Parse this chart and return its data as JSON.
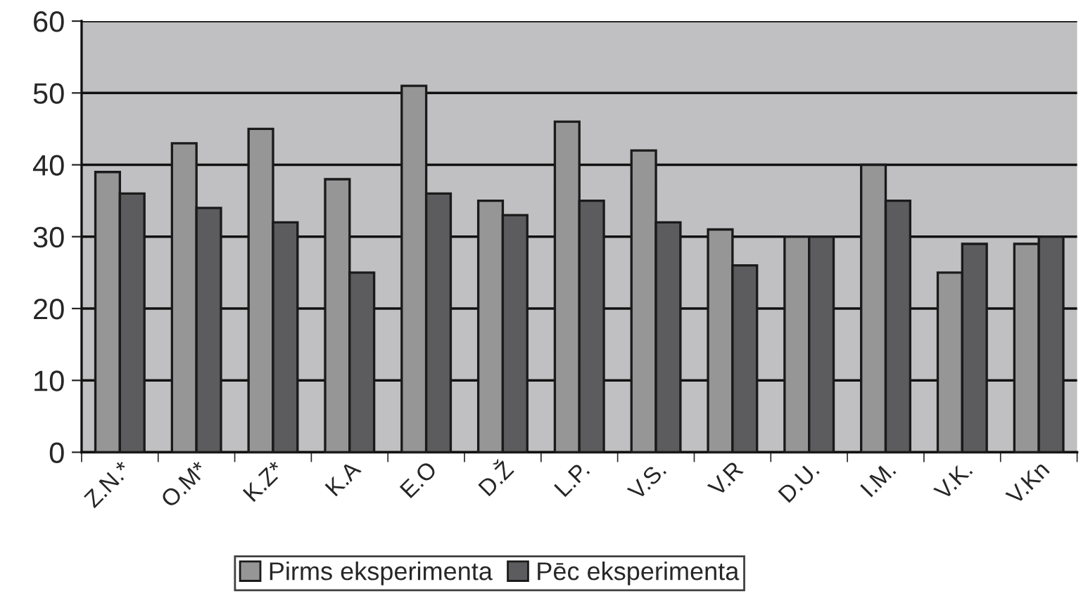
{
  "chart_data": {
    "type": "bar",
    "categories": [
      "Z.N.*",
      "O.M*",
      "K.Z*",
      "K.A",
      "E.O",
      "D.Ž",
      "L.P.",
      "V.S.",
      "V.R",
      "D.U.",
      "I.M.",
      "V.K.",
      "V.Kn"
    ],
    "series": [
      {
        "name": "Pirms eksperimenta",
        "color": "#969696",
        "values": [
          39,
          43,
          45,
          38,
          51,
          35,
          46,
          42,
          31,
          30,
          40,
          25,
          29
        ]
      },
      {
        "name": "Pēc eksperimenta",
        "color": "#5c5c5e",
        "values": [
          36,
          34,
          32,
          25,
          36,
          33,
          35,
          32,
          26,
          30,
          35,
          29,
          30
        ]
      }
    ],
    "ylim": [
      0,
      60
    ],
    "yticks": [
      0,
      10,
      20,
      30,
      40,
      50,
      60
    ],
    "grid": "y",
    "legend": "bottom"
  }
}
